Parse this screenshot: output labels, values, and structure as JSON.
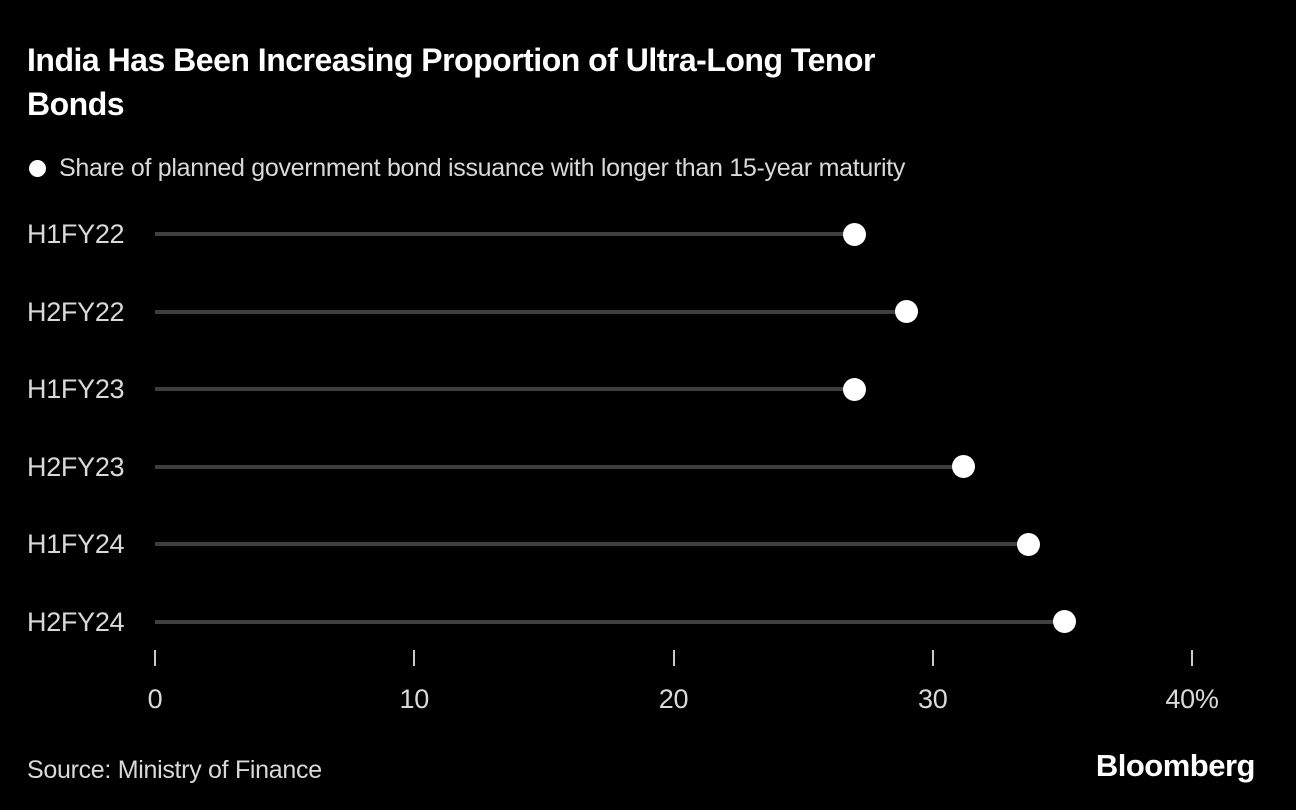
{
  "title": {
    "lines": [
      "India Has Been Increasing Proportion of Ultra-Long Tenor",
      "Bonds"
    ],
    "full": "India Has Been Increasing Proportion of Ultra-Long Tenor Bonds"
  },
  "legend": {
    "marker_icon": "filled-circle-icon",
    "label": "Share of planned government bond issuance with longer than 15-year maturity"
  },
  "footer": {
    "source": "Source: Ministry of Finance",
    "brand": "Bloomberg"
  },
  "colors": {
    "background": "#000000",
    "title_text": "#ffffff",
    "body_text": "#d9d9d9",
    "stem_line": "#3f3f3f",
    "dot_fill": "#ffffff",
    "tick_mark": "#cccccc"
  },
  "chart_data": {
    "type": "bar",
    "style": "lollipop-horizontal",
    "title": "India Has Been Increasing Proportion of Ultra-Long Tenor Bonds",
    "series_label": "Share of planned government bond issuance with longer than 15-year maturity",
    "categories": [
      "H1FY22",
      "H2FY22",
      "H1FY23",
      "H2FY23",
      "H1FY24",
      "H2FY24"
    ],
    "values": [
      27,
      29,
      27,
      31.2,
      33.7,
      35.1
    ],
    "unit": "%",
    "xlabel": "",
    "ylabel": "",
    "xlim": [
      0,
      40
    ],
    "xticks": [
      {
        "value": 0,
        "label": "0"
      },
      {
        "value": 10,
        "label": "10"
      },
      {
        "value": 20,
        "label": "20"
      },
      {
        "value": 30,
        "label": "30"
      },
      {
        "value": 40,
        "label": "40%"
      }
    ],
    "grid": false,
    "legend_position": "top-left"
  }
}
